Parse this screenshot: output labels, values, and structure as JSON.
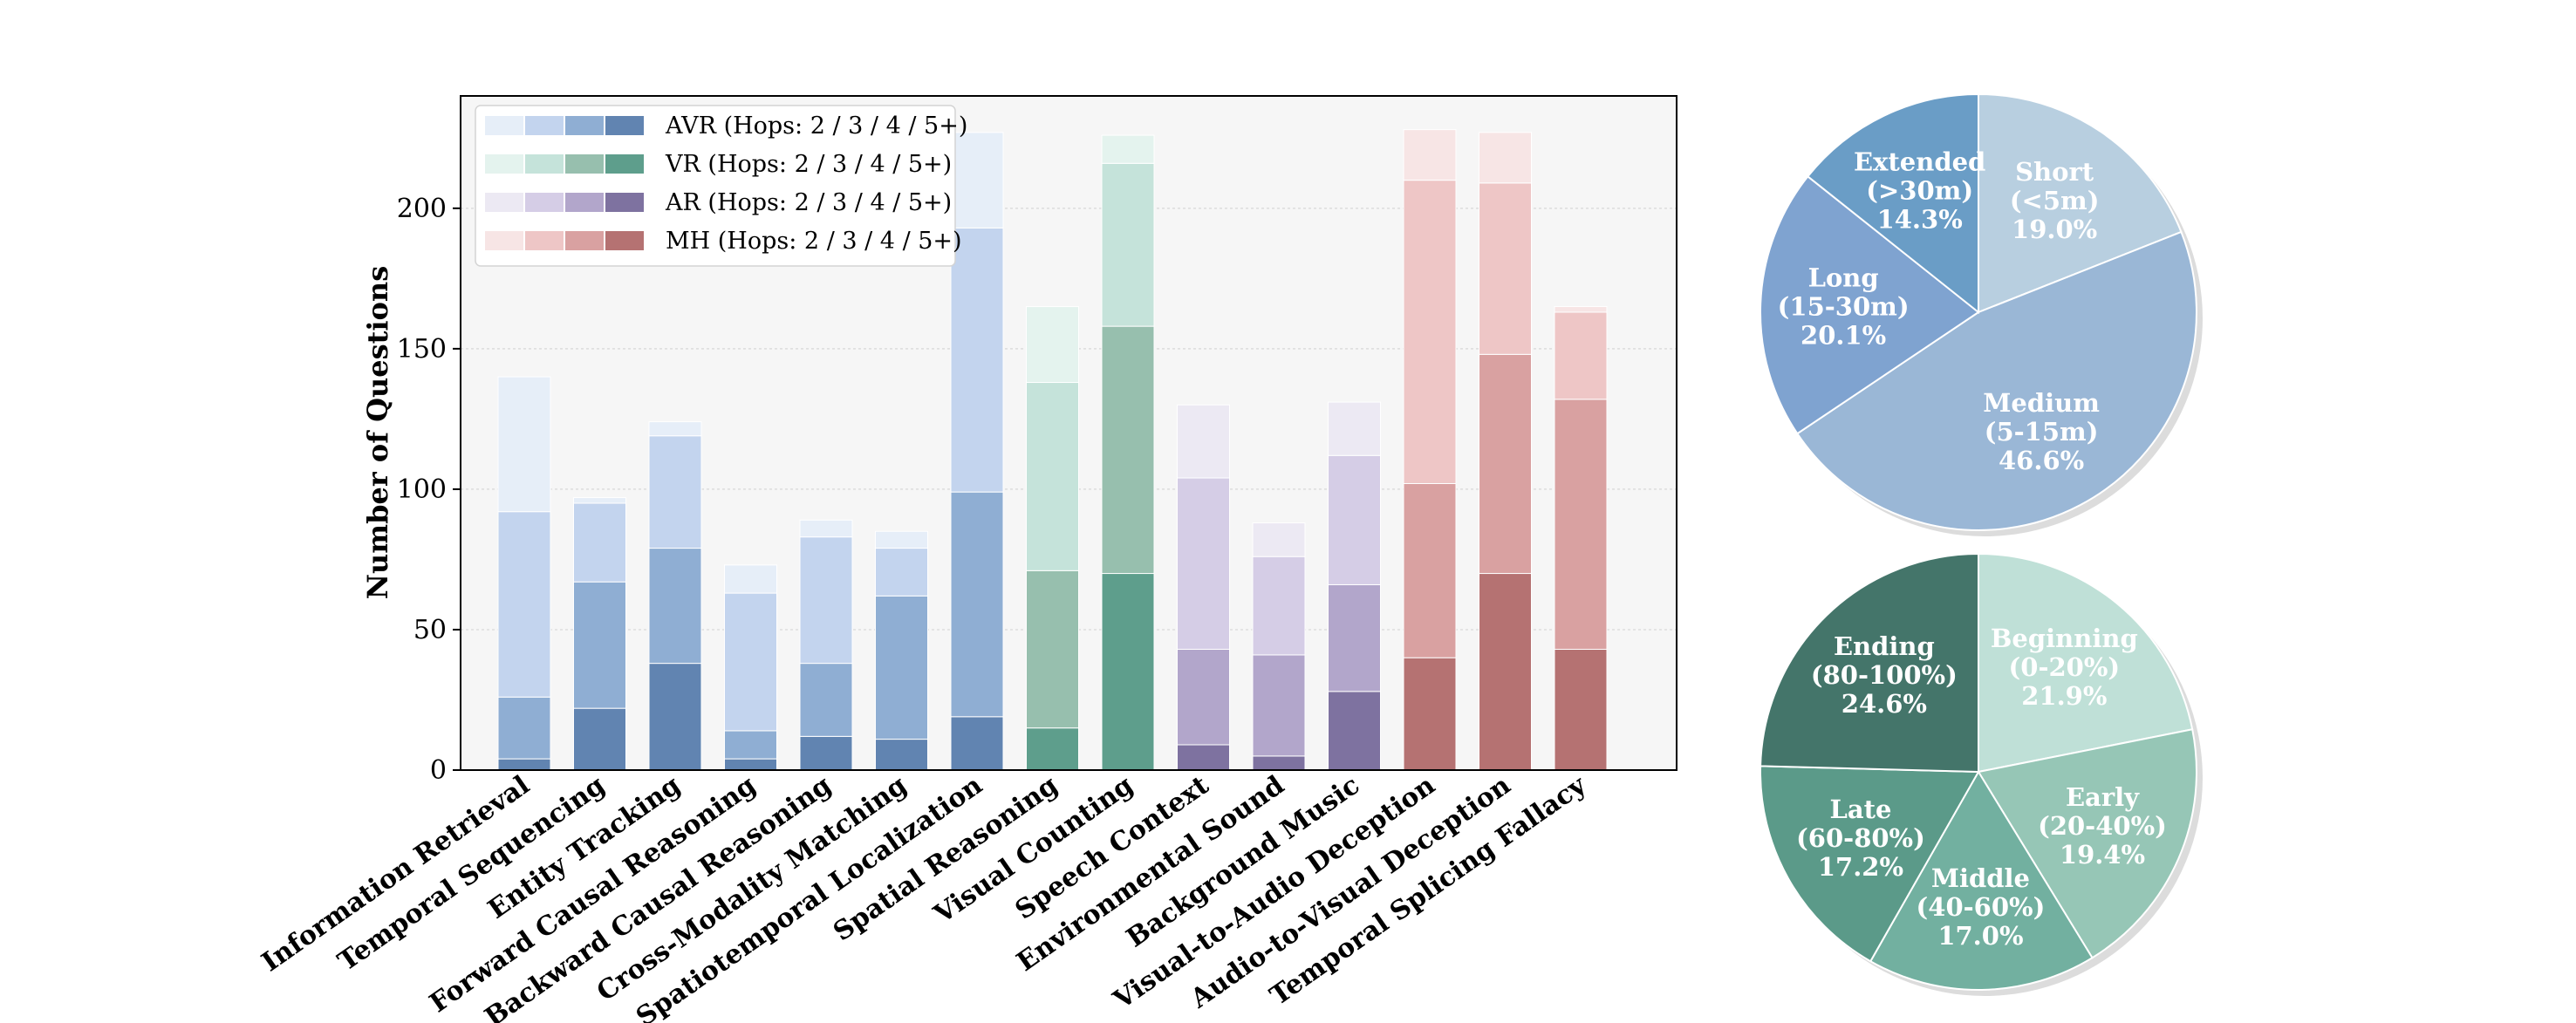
{
  "chart_data": [
    {
      "type": "bar",
      "stacked": true,
      "ylabel": "Number of Questions",
      "ylim": [
        0,
        240
      ],
      "yticks": [
        "0",
        "50",
        "100",
        "150",
        "200"
      ],
      "grid": true,
      "legend_position": "top-left",
      "categories": [
        "Information Retrieval",
        "Temporal Sequencing",
        "Entity Tracking",
        "Forward Causal Reasoning",
        "Backward Causal Reasoning",
        "Cross-Modality Matching",
        "Spatiotemporal Localization",
        "Spatial Reasoning",
        "Visual Counting",
        "Speech Context",
        "Environmental Sound",
        "Background Music",
        "Visual-to-Audio Deception",
        "Audio-to-Visual Deception",
        "Temporal Splicing Fallacy"
      ],
      "groups": [
        {
          "label": "AVR (Hops: 2 / 3 / 4 / 5+)",
          "colors": [
            "#e6eef8",
            "#c3d4ee",
            "#8faed3",
            "#6184b1"
          ]
        },
        {
          "label": "VR (Hops: 2 / 3 / 4 / 5+)",
          "colors": [
            "#e4f3ee",
            "#c5e3da",
            "#97bfae",
            "#5e9e8c"
          ]
        },
        {
          "label": "AR (Hops: 2 / 3 / 4 / 5+)",
          "colors": [
            "#ece9f3",
            "#d5cde6",
            "#b2a6cb",
            "#7e72a0"
          ]
        },
        {
          "label": "MH (Hops: 2 / 3 / 4 / 5+)",
          "colors": [
            "#f7e5e5",
            "#eec6c6",
            "#d9a1a1",
            "#b57272"
          ]
        }
      ],
      "bars": [
        {
          "group": 0,
          "hops_5plus": 4,
          "hops_4": 22,
          "hops_3": 66,
          "hops_2": 48
        },
        {
          "group": 0,
          "hops_5plus": 22,
          "hops_4": 45,
          "hops_3": 28,
          "hops_2": 2
        },
        {
          "group": 0,
          "hops_5plus": 38,
          "hops_4": 41,
          "hops_3": 40,
          "hops_2": 5
        },
        {
          "group": 0,
          "hops_5plus": 4,
          "hops_4": 10,
          "hops_3": 49,
          "hops_2": 10
        },
        {
          "group": 0,
          "hops_5plus": 12,
          "hops_4": 26,
          "hops_3": 45,
          "hops_2": 6
        },
        {
          "group": 0,
          "hops_5plus": 11,
          "hops_4": 51,
          "hops_3": 17,
          "hops_2": 6
        },
        {
          "group": 0,
          "hops_5plus": 19,
          "hops_4": 80,
          "hops_3": 94,
          "hops_2": 34
        },
        {
          "group": 1,
          "hops_5plus": 15,
          "hops_4": 56,
          "hops_3": 67,
          "hops_2": 27
        },
        {
          "group": 1,
          "hops_5plus": 70,
          "hops_4": 88,
          "hops_3": 58,
          "hops_2": 10
        },
        {
          "group": 2,
          "hops_5plus": 9,
          "hops_4": 34,
          "hops_3": 61,
          "hops_2": 26
        },
        {
          "group": 2,
          "hops_5plus": 5,
          "hops_4": 36,
          "hops_3": 35,
          "hops_2": 12
        },
        {
          "group": 2,
          "hops_5plus": 28,
          "hops_4": 38,
          "hops_3": 46,
          "hops_2": 19
        },
        {
          "group": 3,
          "hops_5plus": 40,
          "hops_4": 62,
          "hops_3": 108,
          "hops_2": 18
        },
        {
          "group": 3,
          "hops_5plus": 70,
          "hops_4": 78,
          "hops_3": 61,
          "hops_2": 18
        },
        {
          "group": 3,
          "hops_5plus": 43,
          "hops_4": 89,
          "hops_3": 31,
          "hops_2": 2
        }
      ]
    },
    {
      "type": "pie",
      "slices": [
        {
          "lines": [
            "Short",
            "(<5m)",
            "19.0%"
          ],
          "value": 19.0,
          "color": "#b8cfe0"
        },
        {
          "lines": [
            "Medium",
            "(5-15m)",
            "46.6%"
          ],
          "value": 46.6,
          "color": "#9ab7d6"
        },
        {
          "lines": [
            "Long",
            "(15-30m)",
            "20.1%"
          ],
          "value": 20.1,
          "color": "#7fa3d0"
        },
        {
          "lines": [
            "Extended",
            "(>30m)",
            "14.3%"
          ],
          "value": 14.3,
          "color": "#6a9dc6"
        }
      ]
    },
    {
      "type": "pie",
      "slices": [
        {
          "lines": [
            "Beginning",
            "(0-20%)",
            "21.9%"
          ],
          "value": 21.9,
          "color": "#bfe0d7"
        },
        {
          "lines": [
            "Early",
            "(20-40%)",
            "19.4%"
          ],
          "value": 19.4,
          "color": "#96c6b6"
        },
        {
          "lines": [
            "Middle",
            "(40-60%)",
            "17.0%"
          ],
          "value": 17.0,
          "color": "#72b0a0"
        },
        {
          "lines": [
            "Late",
            "(60-80%)",
            "17.2%"
          ],
          "value": 17.2,
          "color": "#5b9a89"
        },
        {
          "lines": [
            "Ending",
            "(80-100%)",
            "24.6%"
          ],
          "value": 24.6,
          "color": "#44756a"
        }
      ]
    }
  ]
}
